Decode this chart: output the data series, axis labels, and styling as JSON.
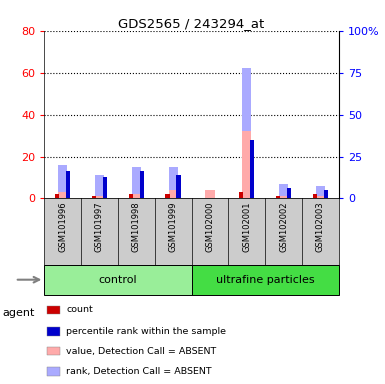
{
  "title": "GDS2565 / 243294_at",
  "samples": [
    "GSM101996",
    "GSM101997",
    "GSM101998",
    "GSM101999",
    "GSM102000",
    "GSM102001",
    "GSM102002",
    "GSM102003"
  ],
  "groups": [
    {
      "label": "control",
      "indices": [
        0,
        1,
        2,
        3
      ],
      "color": "#99ee99"
    },
    {
      "label": "ultrafine particles",
      "indices": [
        4,
        5,
        6,
        7
      ],
      "color": "#44dd44"
    }
  ],
  "count_values": [
    2,
    1,
    2,
    2,
    0,
    3,
    1,
    2
  ],
  "rank_values": [
    13,
    10,
    13,
    11,
    0,
    28,
    5,
    4
  ],
  "value_absent": [
    16,
    11,
    15,
    15,
    4,
    62,
    7,
    6
  ],
  "rank_absent": [
    13,
    10,
    13,
    11,
    0,
    30,
    6,
    5
  ],
  "ylim": [
    0,
    80
  ],
  "y2lim": [
    0,
    100
  ],
  "yticks": [
    0,
    20,
    40,
    60,
    80
  ],
  "y2ticks": [
    0,
    25,
    50,
    75,
    100
  ],
  "y2labels": [
    "0",
    "25",
    "50",
    "75",
    "100%"
  ],
  "colors": {
    "count": "#cc0000",
    "rank": "#0000cc",
    "value_absent": "#ffaaaa",
    "rank_absent": "#aaaaff"
  },
  "legend_items": [
    {
      "color": "#cc0000",
      "label": "count"
    },
    {
      "color": "#0000cc",
      "label": "percentile rank within the sample"
    },
    {
      "color": "#ffaaaa",
      "label": "value, Detection Call = ABSENT"
    },
    {
      "color": "#aaaaff",
      "label": "rank, Detection Call = ABSENT"
    }
  ]
}
